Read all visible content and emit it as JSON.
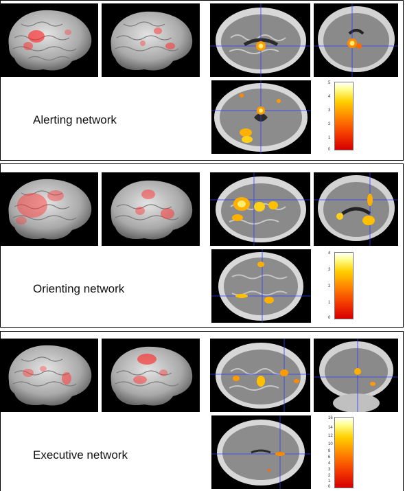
{
  "panels": [
    {
      "label": "Alerting network",
      "scale": [
        "5",
        "4",
        "3",
        "2",
        "1",
        "0"
      ]
    },
    {
      "label": "Orienting network",
      "scale": [
        "4",
        "3",
        "2",
        "1",
        "0"
      ]
    },
    {
      "label": "Executive network",
      "scale": [
        "16",
        "14",
        "12",
        "10",
        "8",
        "6",
        "4",
        "3",
        "2",
        "1",
        "0"
      ]
    }
  ],
  "colors": {
    "activation_hot": "#ff2a00",
    "activation_warm": "#ffd21a",
    "crosshair": "#2b3cff",
    "brain_surface": "#b8b8b8"
  }
}
